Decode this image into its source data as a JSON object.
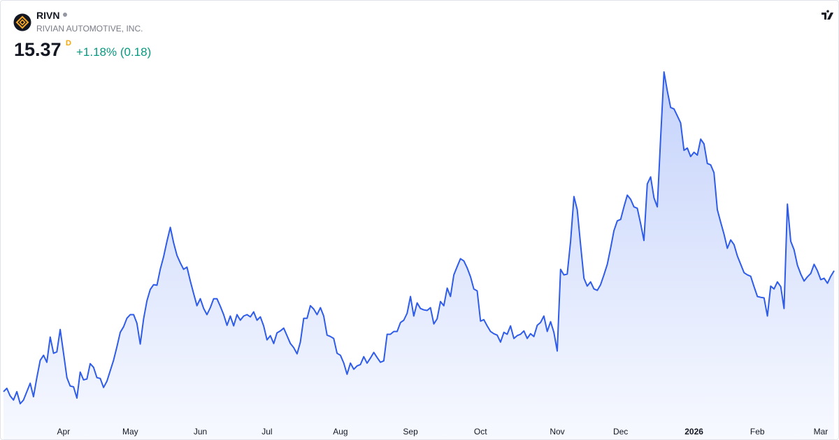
{
  "header": {
    "symbol": "RIVN",
    "name": "RIVIAN AUTOMOTIVE, INC.",
    "price": "15.37",
    "price_flag": "D",
    "change": "+1.18% (0.18)"
  },
  "chart_data": {
    "type": "area",
    "color": "#2f5ce8",
    "values": [
      11.05,
      11.17,
      10.9,
      10.75,
      11.05,
      10.62,
      10.75,
      11.05,
      11.35,
      10.87,
      11.55,
      12.17,
      12.35,
      12.1,
      13.0,
      12.42,
      12.47,
      13.27,
      12.42,
      11.55,
      11.25,
      11.22,
      10.82,
      11.75,
      11.47,
      11.5,
      12.05,
      11.92,
      11.55,
      11.52,
      11.2,
      11.42,
      11.8,
      12.17,
      12.65,
      13.17,
      13.37,
      13.67,
      13.8,
      13.8,
      13.5,
      12.75,
      13.65,
      14.3,
      14.7,
      14.87,
      14.85,
      15.42,
      15.87,
      16.42,
      16.92,
      16.37,
      15.92,
      15.65,
      15.42,
      15.5,
      15.0,
      14.55,
      14.12,
      14.37,
      14.02,
      13.8,
      14.05,
      14.37,
      14.37,
      14.1,
      13.8,
      13.42,
      13.75,
      13.4,
      13.8,
      13.6,
      13.75,
      13.8,
      13.72,
      13.9,
      13.6,
      13.72,
      13.4,
      12.9,
      13.05,
      12.77,
      13.15,
      13.22,
      13.32,
      13.05,
      12.77,
      12.62,
      12.4,
      12.82,
      13.67,
      13.67,
      14.12,
      14.0,
      13.8,
      14.05,
      13.75,
      13.07,
      13.02,
      12.95,
      12.42,
      12.35,
      12.07,
      11.67,
      12.07,
      11.85,
      11.97,
      12.02,
      12.3,
      12.07,
      12.25,
      12.45,
      12.27,
      12.1,
      12.15,
      13.1,
      13.1,
      13.2,
      13.2,
      13.52,
      13.6,
      13.85,
      14.45,
      13.75,
      14.22,
      14.02,
      13.97,
      13.95,
      14.05,
      13.47,
      13.65,
      14.27,
      14.12,
      14.75,
      14.45,
      15.22,
      15.52,
      15.8,
      15.72,
      15.47,
      15.15,
      14.72,
      14.65,
      13.57,
      13.62,
      13.4,
      13.2,
      13.12,
      13.07,
      12.82,
      13.17,
      13.1,
      13.4,
      12.95,
      13.05,
      13.1,
      13.22,
      12.95,
      13.12,
      13.02,
      13.42,
      13.52,
      13.75,
      13.2,
      13.55,
      13.17,
      12.5,
      15.42,
      15.22,
      15.25,
      16.42,
      18.02,
      17.55,
      16.3,
      15.1,
      14.82,
      14.97,
      14.72,
      14.67,
      14.87,
      15.22,
      15.6,
      16.17,
      16.8,
      17.15,
      17.2,
      17.65,
      18.07,
      17.92,
      17.65,
      17.6,
      17.05,
      16.45,
      18.47,
      18.72,
      17.97,
      17.65,
      20.12,
      22.47,
      21.8,
      21.2,
      21.15,
      20.9,
      20.65,
      19.67,
      19.75,
      19.45,
      19.6,
      19.5,
      20.07,
      19.9,
      19.2,
      19.15,
      18.87,
      17.55,
      17.1,
      16.67,
      16.17,
      16.47,
      16.3,
      15.9,
      15.6,
      15.3,
      15.22,
      15.17,
      14.8,
      14.45,
      14.42,
      14.4,
      13.75,
      14.82,
      14.72,
      14.97,
      14.8,
      14.02,
      17.75,
      16.42,
      16.12,
      15.57,
      15.25,
      15.0,
      15.15,
      15.27,
      15.6,
      15.37,
      15.05,
      15.1,
      14.92,
      15.17,
      15.37
    ],
    "xticks": [
      {
        "value": 18,
        "label": "Apr"
      },
      {
        "value": 38,
        "label": "May"
      },
      {
        "value": 59,
        "label": "Jun"
      },
      {
        "value": 79,
        "label": "Jul"
      },
      {
        "value": 101,
        "label": "Aug"
      },
      {
        "value": 122,
        "label": "Sep"
      },
      {
        "value": 143,
        "label": "Oct"
      },
      {
        "value": 166,
        "label": "Nov"
      },
      {
        "value": 185,
        "label": "Dec"
      },
      {
        "value": 207,
        "label": "2026"
      },
      {
        "value": 226,
        "label": "Feb"
      },
      {
        "value": 245,
        "label": "Mar"
      }
    ]
  }
}
